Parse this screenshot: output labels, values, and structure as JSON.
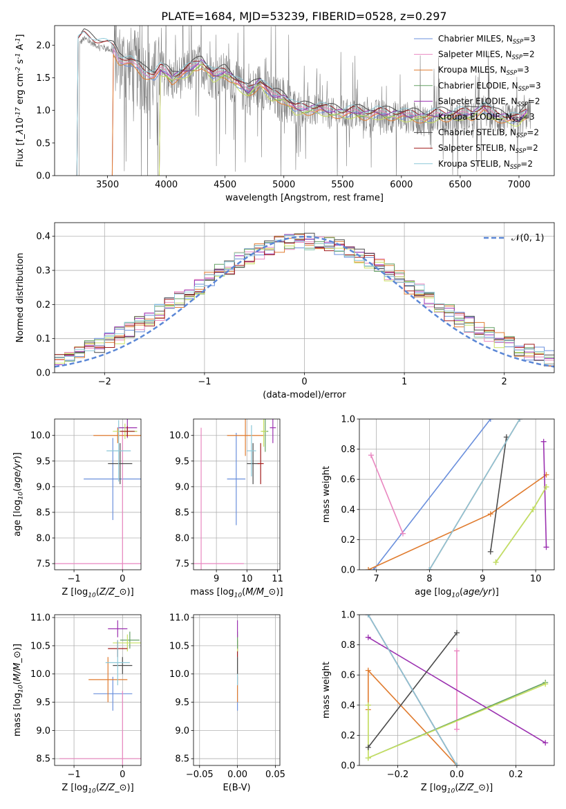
{
  "title": "PLATE=1684, MJD=53239, FIBERID=0528, z=0.297",
  "colors": {
    "series": [
      "#6a8fdc",
      "#e986c0",
      "#e07b2e",
      "#64a064",
      "#9b30b0",
      "#c8e060",
      "#4a4a4a",
      "#a01a1a",
      "#8cc8d8"
    ],
    "observed": "#7f7f7f",
    "normal": "#5b87d6",
    "grid": "#b0b0b0"
  },
  "series_names": [
    "Chabrier MILES, N$_{SSP}$=3",
    "Salpeter MILES, N$_{SSP}$=2",
    "Kroupa MILES, N$_{SSP}$=3",
    "Chabrier ELODIE, N$_{SSP}$=3",
    "Salpeter ELODIE, N$_{SSP}$=2",
    "Kroupa ELODIE, N$_{SSP}$=3",
    "Chabrier STELIB, N$_{SSP}$=2",
    "Salpeter STELIB, N$_{SSP}$=2",
    "Kroupa STELIB, N$_{SSP}$=2"
  ],
  "chart_data": [
    {
      "id": "spectrum",
      "type": "line",
      "xlabel": "wavelength [Angstrom, rest frame]",
      "ylabel": "Flux [f$_\\lambda$10$^{-17}$ erg cm$^{-2}$ s$^{-1}$ A$^{-1}$]",
      "xlim": [
        3050,
        7300
      ],
      "ylim": [
        0,
        2.3
      ],
      "xticks": [
        3500,
        4000,
        4500,
        5000,
        5500,
        6000,
        6500,
        7000
      ],
      "yticks": [
        0.0,
        0.5,
        1.0,
        1.5,
        2.0
      ],
      "grid": false,
      "legend": "top-right",
      "model_start": [
        3550,
        3550,
        3550,
        3950,
        3950,
        3950,
        3250,
        3250,
        3250
      ],
      "model_end": 7070,
      "model_offset": [
        0.0,
        0.03,
        -0.02,
        0.02,
        0.05,
        -0.03,
        0.12,
        0.08,
        0.1
      ],
      "model_shape": {
        "x": [
          3250,
          3300,
          3400,
          3500,
          3550,
          3600,
          3700,
          3800,
          3900,
          3950,
          4000,
          4050,
          4100,
          4200,
          4300,
          4400,
          4500,
          4600,
          4700,
          4800,
          4900,
          5000,
          5100,
          5200,
          5300,
          5400,
          5500,
          5600,
          5700,
          5800,
          5900,
          6000,
          6100,
          6200,
          6300,
          6400,
          6500,
          6600,
          6700,
          6800,
          6900,
          7000,
          7070
        ],
        "y": [
          2.0,
          2.1,
          2.0,
          1.95,
          1.9,
          1.75,
          1.7,
          1.55,
          1.5,
          1.6,
          1.55,
          1.45,
          1.5,
          1.6,
          1.7,
          1.5,
          1.55,
          1.4,
          1.25,
          1.4,
          1.2,
          1.15,
          1.0,
          0.98,
          1.0,
          0.95,
          0.92,
          0.95,
          0.9,
          0.93,
          0.9,
          0.9,
          0.88,
          0.85,
          0.9,
          0.88,
          0.92,
          0.9,
          1.0,
          0.88,
          0.85,
          0.82,
          0.95
        ]
      },
      "observed_range": [
        3250,
        7100
      ]
    },
    {
      "id": "residuals",
      "type": "histogram",
      "xlabel": "(data-model)/error",
      "ylabel": "Normed distribution",
      "xlim": [
        -2.5,
        2.5
      ],
      "ylim": [
        0,
        0.44
      ],
      "xticks": [
        -2,
        -1,
        0,
        1,
        2
      ],
      "yticks": [
        0.0,
        0.1,
        0.2,
        0.3,
        0.4
      ],
      "grid": true,
      "bin_width": 0.1,
      "normal_label": "$\\mathcal{N}(0,1)$",
      "legend": "top-right"
    },
    {
      "id": "age_vs_Z",
      "type": "errorbar",
      "xlabel": "Z [log$_{10}$($Z/Z_\\odot$)]",
      "ylabel": "age  [log$_{10}$($age/yr$)]",
      "xlim": [
        -1.4,
        0.38
      ],
      "ylim": [
        7.38,
        10.32
      ],
      "xticks": [
        -1,
        0
      ],
      "yticks": [
        7.5,
        8.0,
        8.5,
        9.0,
        9.5,
        10.0
      ],
      "grid": true,
      "points": [
        {
          "s": 0,
          "x": -0.2,
          "y": 9.15,
          "xerr": 0.6,
          "yerr": 0.8
        },
        {
          "s": 1,
          "x": 0.0,
          "y": 7.5,
          "xerr": 1.4,
          "yerr": 2.6
        },
        {
          "s": 2,
          "x": -0.1,
          "y": 10.0,
          "xerr": 0.5,
          "yerr": 0.15
        },
        {
          "s": 3,
          "x": 0.1,
          "y": 10.08,
          "xerr": 0.2,
          "yerr": 0.1
        },
        {
          "s": 4,
          "x": 0.1,
          "y": 10.15,
          "xerr": 0.2,
          "yerr": 0.2
        },
        {
          "s": 5,
          "x": 0.05,
          "y": 10.08,
          "xerr": 0.25,
          "yerr": 0.15
        },
        {
          "s": 6,
          "x": -0.05,
          "y": 9.45,
          "xerr": 0.25,
          "yerr": 0.4
        },
        {
          "s": 7,
          "x": 0.1,
          "y": 10.08,
          "xerr": 0.15,
          "yerr": 0.1
        },
        {
          "s": 8,
          "x": -0.08,
          "y": 9.7,
          "xerr": 0.25,
          "yerr": 0.6
        }
      ]
    },
    {
      "id": "age_vs_mass",
      "type": "errorbar",
      "xlabel": "mass [log$_{10}$($M/M_\\odot$)]",
      "ylabel": "",
      "xlim": [
        8.25,
        11.08
      ],
      "ylim": [
        7.38,
        10.32
      ],
      "xticks": [
        9,
        10,
        11
      ],
      "yticks": [
        7.5,
        8.0,
        8.5,
        9.0,
        9.5,
        10.0
      ],
      "grid": true,
      "points": [
        {
          "s": 0,
          "x": 9.65,
          "y": 9.15,
          "xerr": 0.3,
          "yerr": 0.9
        },
        {
          "s": 1,
          "x": 8.5,
          "y": 7.5,
          "xerr": 1.4,
          "yerr": 2.65
        },
        {
          "s": 2,
          "x": 9.95,
          "y": 10.0,
          "xerr": 0.6,
          "yerr": 0.4
        },
        {
          "s": 3,
          "x": 10.6,
          "y": 10.08,
          "xerr": 0.1,
          "yerr": 0.4
        },
        {
          "s": 4,
          "x": 10.85,
          "y": 10.15,
          "xerr": 0.1,
          "yerr": 0.3
        },
        {
          "s": 5,
          "x": 10.55,
          "y": 10.08,
          "xerr": 0.1,
          "yerr": 0.3
        },
        {
          "s": 6,
          "x": 10.2,
          "y": 9.45,
          "xerr": 0.2,
          "yerr": 0.4
        },
        {
          "s": 7,
          "x": 10.45,
          "y": 9.45,
          "xerr": 0.1,
          "yerr": 0.4
        },
        {
          "s": 8,
          "x": 10.15,
          "y": 9.7,
          "xerr": 0.15,
          "yerr": 0.5
        }
      ]
    },
    {
      "id": "weight_vs_age",
      "type": "line",
      "xlabel": "age  [log$_{10}$($age/yr$)]",
      "ylabel": "mass weight",
      "xlim": [
        6.68,
        10.35
      ],
      "ylim": [
        0,
        1.0
      ],
      "xticks": [
        7,
        8,
        9,
        10
      ],
      "yticks": [
        0.0,
        0.2,
        0.4,
        0.6,
        0.8,
        1.0
      ],
      "grid": true,
      "lines": [
        {
          "s": 0,
          "x": [
            6.95,
            9.15
          ],
          "y": [
            0.0,
            1.0
          ]
        },
        {
          "s": 1,
          "x": [
            6.9,
            7.5
          ],
          "y": [
            0.76,
            0.24
          ]
        },
        {
          "s": 2,
          "x": [
            6.85,
            9.15,
            10.2
          ],
          "y": [
            0.0,
            0.37,
            0.63
          ]
        },
        {
          "s": 3,
          "x": [
            9.25,
            9.95,
            10.2
          ],
          "y": [
            0.05,
            0.4,
            0.55
          ]
        },
        {
          "s": 4,
          "x": [
            10.15,
            10.2
          ],
          "y": [
            0.85,
            0.15
          ]
        },
        {
          "s": 5,
          "x": [
            9.25,
            9.95,
            10.2
          ],
          "y": [
            0.05,
            0.4,
            0.55
          ]
        },
        {
          "s": 6,
          "x": [
            9.15,
            9.45
          ],
          "y": [
            0.12,
            0.88
          ]
        },
        {
          "s": 7,
          "x": [
            8.0,
            9.7
          ],
          "y": [
            0.0,
            1.0
          ]
        },
        {
          "s": 8,
          "x": [
            8.0,
            9.7
          ],
          "y": [
            0.0,
            1.0
          ]
        }
      ]
    },
    {
      "id": "mass_vs_Z",
      "type": "errorbar",
      "xlabel": "Z [log$_{10}$($Z/Z_\\odot$)]",
      "ylabel": "mass [log$_{10}$($M/M_\\odot$)]",
      "xlim": [
        -1.4,
        0.38
      ],
      "ylim": [
        8.38,
        11.05
      ],
      "xticks": [
        -1,
        0
      ],
      "yticks": [
        8.5,
        9.0,
        9.5,
        10.0,
        10.5,
        11.0
      ],
      "grid": true,
      "points": [
        {
          "s": 0,
          "x": -0.2,
          "y": 9.65,
          "xerr": 0.4,
          "yerr": 0.3
        },
        {
          "s": 1,
          "x": 0.0,
          "y": 8.5,
          "xerr": 1.3,
          "yerr": 1.2
        },
        {
          "s": 2,
          "x": -0.3,
          "y": 9.9,
          "xerr": 0.4,
          "yerr": 0.4
        },
        {
          "s": 3,
          "x": 0.15,
          "y": 10.6,
          "xerr": 0.2,
          "yerr": 0.15
        },
        {
          "s": 4,
          "x": -0.1,
          "y": 10.8,
          "xerr": 0.2,
          "yerr": 0.15
        },
        {
          "s": 5,
          "x": 0.1,
          "y": 10.55,
          "xerr": 0.3,
          "yerr": 0.15
        },
        {
          "s": 6,
          "x": 0.0,
          "y": 10.15,
          "xerr": 0.2,
          "yerr": 0.15
        },
        {
          "s": 7,
          "x": -0.1,
          "y": 10.45,
          "xerr": 0.2,
          "yerr": 0.15
        },
        {
          "s": 8,
          "x": -0.1,
          "y": 10.2,
          "xerr": 0.25,
          "yerr": 0.4
        }
      ]
    },
    {
      "id": "mass_vs_ebv",
      "type": "errorbar",
      "xlabel": "E(B-V)",
      "ylabel": "",
      "xlim": [
        -0.058,
        0.056
      ],
      "ylim": [
        8.38,
        11.05
      ],
      "xticks": [
        -0.05,
        0.0,
        0.05
      ],
      "xtick_labels": [
        "−0.05",
        "0.00",
        "0.05"
      ],
      "yticks": [
        8.5,
        9.0,
        9.5,
        10.0,
        10.5,
        11.0
      ],
      "grid": true,
      "points": [
        {
          "s": 1,
          "x": 0.0,
          "y": 8.5,
          "xerr": 0.0,
          "yerr": 0.0
        },
        {
          "s": 0,
          "x": 0.0,
          "y": 9.65,
          "xerr": 0.0,
          "yerr": 0.3
        },
        {
          "s": 2,
          "x": 0.0,
          "y": 9.9,
          "xerr": 0.0,
          "yerr": 0.4
        },
        {
          "s": 8,
          "x": 0.0,
          "y": 10.2,
          "xerr": 0.0,
          "yerr": 0.4
        },
        {
          "s": 6,
          "x": 0.0,
          "y": 10.15,
          "xerr": 0.0,
          "yerr": 0.15
        },
        {
          "s": 7,
          "x": 0.0,
          "y": 10.45,
          "xerr": 0.0,
          "yerr": 0.15
        },
        {
          "s": 5,
          "x": 0.0,
          "y": 10.55,
          "xerr": 0.0,
          "yerr": 0.15
        },
        {
          "s": 3,
          "x": 0.0,
          "y": 10.6,
          "xerr": 0.0,
          "yerr": 0.15
        },
        {
          "s": 4,
          "x": 0.0,
          "y": 10.8,
          "xerr": 0.0,
          "yerr": 0.15
        }
      ]
    },
    {
      "id": "weight_vs_Z",
      "type": "line",
      "xlabel": "Z [log$_{10}$($Z/Z_\\odot$)]",
      "ylabel": "mass weight",
      "xlim": [
        -0.33,
        0.33
      ],
      "ylim": [
        0,
        1.0
      ],
      "xticks": [
        -0.2,
        0.0,
        0.2
      ],
      "xtick_labels": [
        "−0.2",
        "0.0",
        "0.2"
      ],
      "yticks": [
        0.0,
        0.2,
        0.4,
        0.6,
        0.8,
        1.0
      ],
      "grid": true,
      "lines": [
        {
          "s": 0,
          "x": [
            -0.3,
            0.0
          ],
          "y": [
            1.0,
            0.0
          ]
        },
        {
          "s": 1,
          "x": [
            0.0,
            0.0
          ],
          "y": [
            0.76,
            0.24
          ]
        },
        {
          "s": 2,
          "x": [
            -0.3,
            -0.3,
            0.0
          ],
          "y": [
            0.37,
            0.63,
            0.0
          ]
        },
        {
          "s": 3,
          "x": [
            -0.3,
            -0.3,
            0.3
          ],
          "y": [
            0.4,
            0.05,
            0.55
          ]
        },
        {
          "s": 4,
          "x": [
            -0.3,
            0.3
          ],
          "y": [
            0.85,
            0.15
          ]
        },
        {
          "s": 5,
          "x": [
            -0.3,
            -0.3,
            0.3
          ],
          "y": [
            0.4,
            0.05,
            0.54
          ]
        },
        {
          "s": 6,
          "x": [
            -0.3,
            0.0
          ],
          "y": [
            0.12,
            0.88
          ]
        },
        {
          "s": 7,
          "x": [
            -0.3,
            0.0
          ],
          "y": [
            1.0,
            0.0
          ]
        },
        {
          "s": 8,
          "x": [
            -0.3,
            0.0
          ],
          "y": [
            1.0,
            0.0
          ]
        }
      ]
    }
  ]
}
